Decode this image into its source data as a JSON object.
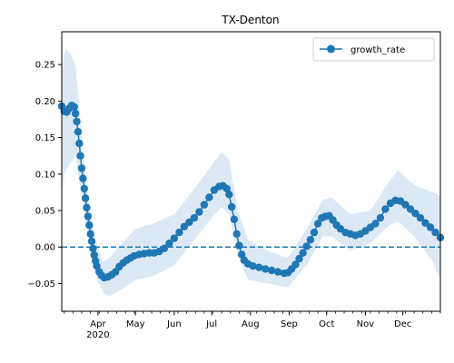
{
  "chart_data": {
    "type": "line",
    "title": "TX-Denton",
    "xlabel": "",
    "ylabel": "",
    "legend": {
      "placement": "top-right",
      "entries": [
        "growth_rate"
      ]
    },
    "x_tick_labels": [
      "Apr\n2020",
      "May",
      "Jun",
      "Jul",
      "Aug",
      "Sep",
      "Oct",
      "Nov",
      "Dec"
    ],
    "y_tick_labels": [
      "−0.05",
      "0.00",
      "0.05",
      "0.10",
      "0.15",
      "0.20",
      "0.25"
    ],
    "x_range": [
      "2020-03-03",
      "2020-12-31"
    ],
    "ylim": [
      -0.088,
      0.295
    ],
    "grid": false,
    "reference_line": {
      "y": 0.0,
      "style": "dashed"
    },
    "colors": {
      "series": "#1f77b4",
      "band": "#dce9f5"
    },
    "series": [
      {
        "name": "growth_rate",
        "points": [
          [
            "2020-03-03",
            0.193
          ],
          [
            "2020-03-05",
            0.186
          ],
          [
            "2020-03-07",
            0.185
          ],
          [
            "2020-03-09",
            0.19
          ],
          [
            "2020-03-11",
            0.194
          ],
          [
            "2020-03-13",
            0.192
          ],
          [
            "2020-03-14",
            0.183
          ],
          [
            "2020-03-15",
            0.172
          ],
          [
            "2020-03-16",
            0.158
          ],
          [
            "2020-03-17",
            0.142
          ],
          [
            "2020-03-18",
            0.125
          ],
          [
            "2020-03-19",
            0.108
          ],
          [
            "2020-03-20",
            0.094
          ],
          [
            "2020-03-21",
            0.08
          ],
          [
            "2020-03-22",
            0.067
          ],
          [
            "2020-03-23",
            0.054
          ],
          [
            "2020-03-24",
            0.042
          ],
          [
            "2020-03-25",
            0.03
          ],
          [
            "2020-03-26",
            0.018
          ],
          [
            "2020-03-27",
            0.008
          ],
          [
            "2020-03-28",
            -0.002
          ],
          [
            "2020-03-29",
            -0.011
          ],
          [
            "2020-03-30",
            -0.019
          ],
          [
            "2020-03-31",
            -0.026
          ],
          [
            "2020-04-02",
            -0.034
          ],
          [
            "2020-04-04",
            -0.039
          ],
          [
            "2020-04-06",
            -0.042
          ],
          [
            "2020-04-09",
            -0.041
          ],
          [
            "2020-04-12",
            -0.038
          ],
          [
            "2020-04-15",
            -0.034
          ],
          [
            "2020-04-18",
            -0.027
          ],
          [
            "2020-04-21",
            -0.022
          ],
          [
            "2020-04-24",
            -0.018
          ],
          [
            "2020-04-27",
            -0.015
          ],
          [
            "2020-04-30",
            -0.012
          ],
          [
            "2020-05-04",
            -0.01
          ],
          [
            "2020-05-08",
            -0.009
          ],
          [
            "2020-05-12",
            -0.008
          ],
          [
            "2020-05-16",
            -0.008
          ],
          [
            "2020-05-20",
            -0.006
          ],
          [
            "2020-05-24",
            -0.002
          ],
          [
            "2020-05-28",
            0.005
          ],
          [
            "2020-06-01",
            0.012
          ],
          [
            "2020-06-05",
            0.02
          ],
          [
            "2020-06-09",
            0.028
          ],
          [
            "2020-06-13",
            0.034
          ],
          [
            "2020-06-17",
            0.04
          ],
          [
            "2020-06-21",
            0.048
          ],
          [
            "2020-06-25",
            0.058
          ],
          [
            "2020-06-29",
            0.068
          ],
          [
            "2020-07-03",
            0.078
          ],
          [
            "2020-07-07",
            0.083
          ],
          [
            "2020-07-10",
            0.084
          ],
          [
            "2020-07-13",
            0.08
          ],
          [
            "2020-07-15",
            0.072
          ],
          [
            "2020-07-17",
            0.055
          ],
          [
            "2020-07-19",
            0.038
          ],
          [
            "2020-07-21",
            0.018
          ],
          [
            "2020-07-23",
            0.002
          ],
          [
            "2020-07-25",
            -0.01
          ],
          [
            "2020-07-27",
            -0.018
          ],
          [
            "2020-07-30",
            -0.023
          ],
          [
            "2020-08-03",
            -0.026
          ],
          [
            "2020-08-08",
            -0.028
          ],
          [
            "2020-08-13",
            -0.03
          ],
          [
            "2020-08-18",
            -0.032
          ],
          [
            "2020-08-23",
            -0.034
          ],
          [
            "2020-08-28",
            -0.036
          ],
          [
            "2020-08-31",
            -0.035
          ],
          [
            "2020-09-03",
            -0.03
          ],
          [
            "2020-09-06",
            -0.024
          ],
          [
            "2020-09-09",
            -0.016
          ],
          [
            "2020-09-12",
            -0.008
          ],
          [
            "2020-09-15",
            0.001
          ],
          [
            "2020-09-18",
            0.01
          ],
          [
            "2020-09-21",
            0.02
          ],
          [
            "2020-09-24",
            0.032
          ],
          [
            "2020-09-27",
            0.04
          ],
          [
            "2020-09-30",
            0.042
          ],
          [
            "2020-10-03",
            0.043
          ],
          [
            "2020-10-06",
            0.037
          ],
          [
            "2020-10-09",
            0.03
          ],
          [
            "2020-10-12",
            0.025
          ],
          [
            "2020-10-16",
            0.02
          ],
          [
            "2020-10-20",
            0.018
          ],
          [
            "2020-10-24",
            0.016
          ],
          [
            "2020-10-28",
            0.018
          ],
          [
            "2020-11-01",
            0.022
          ],
          [
            "2020-11-05",
            0.027
          ],
          [
            "2020-11-09",
            0.032
          ],
          [
            "2020-11-13",
            0.04
          ],
          [
            "2020-11-17",
            0.052
          ],
          [
            "2020-11-21",
            0.06
          ],
          [
            "2020-11-25",
            0.064
          ],
          [
            "2020-11-29",
            0.063
          ],
          [
            "2020-12-03",
            0.058
          ],
          [
            "2020-12-07",
            0.052
          ],
          [
            "2020-12-11",
            0.046
          ],
          [
            "2020-12-15",
            0.04
          ],
          [
            "2020-12-19",
            0.033
          ],
          [
            "2020-12-23",
            0.027
          ],
          [
            "2020-12-27",
            0.02
          ],
          [
            "2020-12-31",
            0.013
          ]
        ]
      }
    ],
    "band": [
      [
        "2020-03-03",
        0.075,
        0.245
      ],
      [
        "2020-03-06",
        0.105,
        0.272
      ],
      [
        "2020-03-10",
        0.115,
        0.265
      ],
      [
        "2020-03-14",
        0.125,
        0.25
      ],
      [
        "2020-03-18",
        0.08,
        0.175
      ],
      [
        "2020-03-22",
        0.04,
        0.095
      ],
      [
        "2020-03-26",
        0.0,
        0.04
      ],
      [
        "2020-03-30",
        -0.04,
        0.01
      ],
      [
        "2020-04-05",
        -0.062,
        -0.02
      ],
      [
        "2020-04-10",
        -0.068,
        -0.015
      ],
      [
        "2020-04-20",
        -0.058,
        0.005
      ],
      [
        "2020-05-01",
        -0.045,
        0.025
      ],
      [
        "2020-05-15",
        -0.04,
        0.032
      ],
      [
        "2020-06-01",
        -0.025,
        0.045
      ],
      [
        "2020-06-15",
        0.005,
        0.075
      ],
      [
        "2020-07-01",
        0.04,
        0.112
      ],
      [
        "2020-07-09",
        0.055,
        0.13
      ],
      [
        "2020-07-15",
        0.045,
        0.12
      ],
      [
        "2020-07-22",
        -0.012,
        0.05
      ],
      [
        "2020-07-30",
        -0.045,
        0.01
      ],
      [
        "2020-08-15",
        -0.05,
        -0.005
      ],
      [
        "2020-08-31",
        -0.055,
        -0.015
      ],
      [
        "2020-09-15",
        -0.025,
        0.025
      ],
      [
        "2020-09-28",
        0.015,
        0.065
      ],
      [
        "2020-10-05",
        0.015,
        0.068
      ],
      [
        "2020-10-20",
        -0.005,
        0.045
      ],
      [
        "2020-11-05",
        0.005,
        0.05
      ],
      [
        "2020-11-20",
        0.03,
        0.09
      ],
      [
        "2020-11-27",
        0.035,
        0.105
      ],
      [
        "2020-12-10",
        0.015,
        0.085
      ],
      [
        "2020-12-25",
        -0.02,
        0.075
      ],
      [
        "2020-12-31",
        -0.045,
        0.07
      ]
    ]
  }
}
